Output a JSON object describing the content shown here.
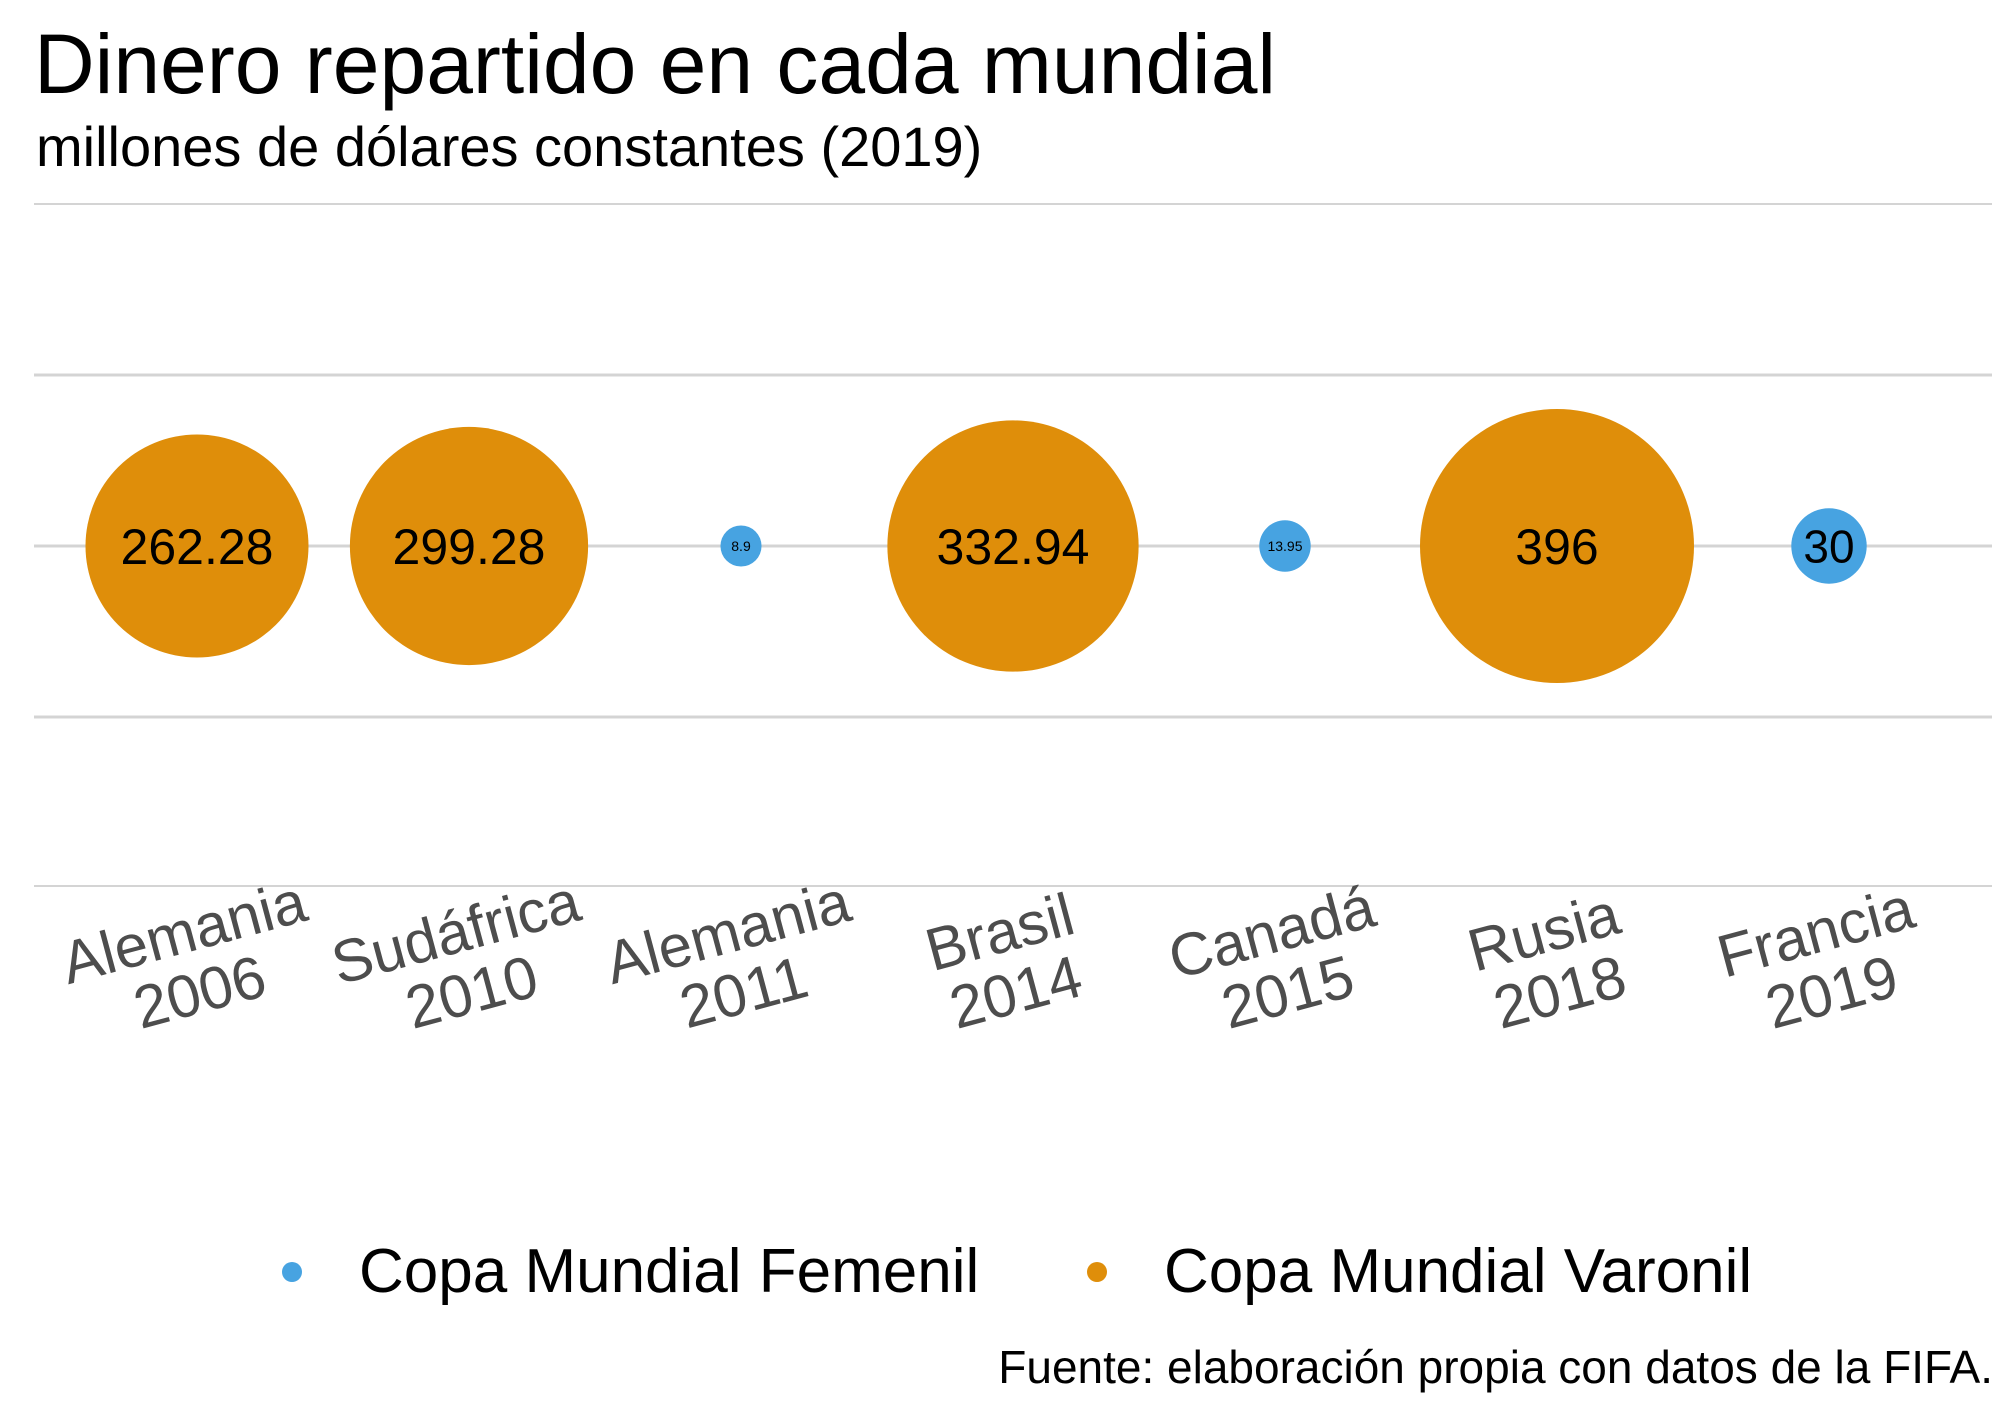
{
  "chart_data": {
    "type": "bubble",
    "title": "Dinero repartido en cada mundial",
    "subtitle": "millones de dólares constantes (2019)",
    "source": "Fuente: elaboración propia con datos de la FIFA.",
    "categories": [
      [
        "Alemania",
        "2006"
      ],
      [
        "Sudáfrica",
        "2010"
      ],
      [
        "Alemania",
        "2011"
      ],
      [
        "Brasil",
        "2014"
      ],
      [
        "Canadá",
        "2015"
      ],
      [
        "Rusia",
        "2018"
      ],
      [
        "Francia",
        "2019"
      ]
    ],
    "points": [
      {
        "label": "262.28",
        "value": 262.28,
        "series": 1
      },
      {
        "label": "299.28",
        "value": 299.28,
        "series": 1
      },
      {
        "label": "8.9",
        "value": 8.9,
        "series": 0
      },
      {
        "label": "332.94",
        "value": 332.94,
        "series": 1
      },
      {
        "label": "13.95",
        "value": 13.95,
        "series": 0
      },
      {
        "label": "396",
        "value": 396,
        "series": 1
      },
      {
        "label": "30",
        "value": 30,
        "series": 0
      }
    ],
    "series": [
      {
        "name": "Copa Mundial Femenil",
        "color": "#47A3E1"
      },
      {
        "name": "Copa Mundial Varonil",
        "color": "#DF8E0A"
      }
    ],
    "legend_position": "bottom",
    "grid": true
  }
}
